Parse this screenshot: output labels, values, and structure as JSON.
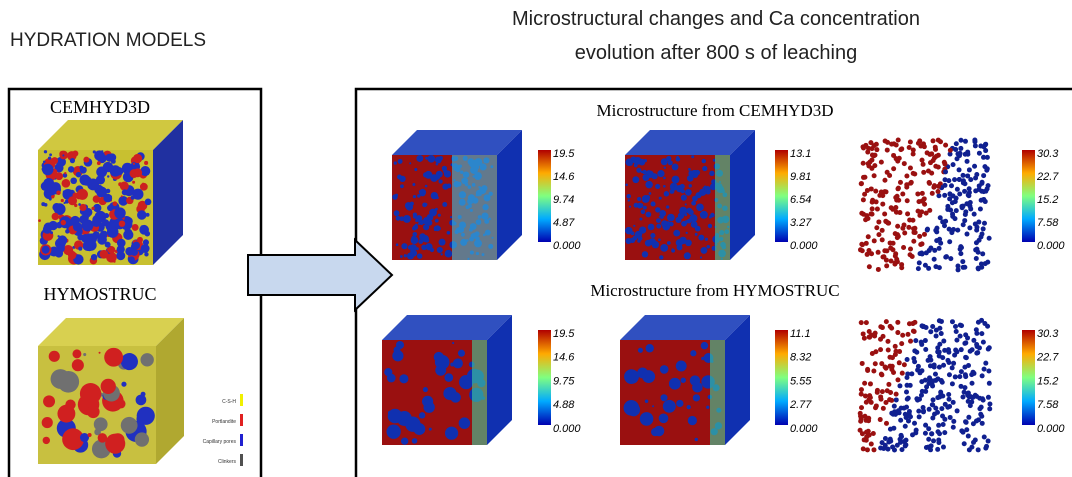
{
  "header": {
    "left_title": "HYDRATION MODELS",
    "right_title": [
      "Microstructural changes and Ca concentration",
      "evolution  after 800 s of leaching"
    ]
  },
  "left_panel": {
    "models": [
      "CEMHYD3D",
      "HYMOSTRUC"
    ],
    "legend": [
      "C-S-H",
      "Portlandite",
      "Capillary pores",
      "Clinkers"
    ]
  },
  "right_panel": {
    "rows": [
      {
        "title": "Microstructure from CEMHYD3D",
        "colorbars": [
          [
            "19.5",
            "14.6",
            "9.74",
            "4.87",
            "0.000"
          ],
          [
            "13.1",
            "9.81",
            "6.54",
            "3.27",
            "0.000"
          ],
          [
            "30.3",
            "22.7",
            "15.2",
            "7.58",
            "0.000"
          ]
        ]
      },
      {
        "title": "Microstructure from HYMOSTRUC",
        "colorbars": [
          [
            "19.5",
            "14.6",
            "9.75",
            "4.88",
            "0.000"
          ],
          [
            "11.1",
            "8.32",
            "5.55",
            "2.77",
            "0.000"
          ],
          [
            "30.3",
            "22.7",
            "15.2",
            "7.58",
            "0.000"
          ]
        ]
      }
    ]
  }
}
